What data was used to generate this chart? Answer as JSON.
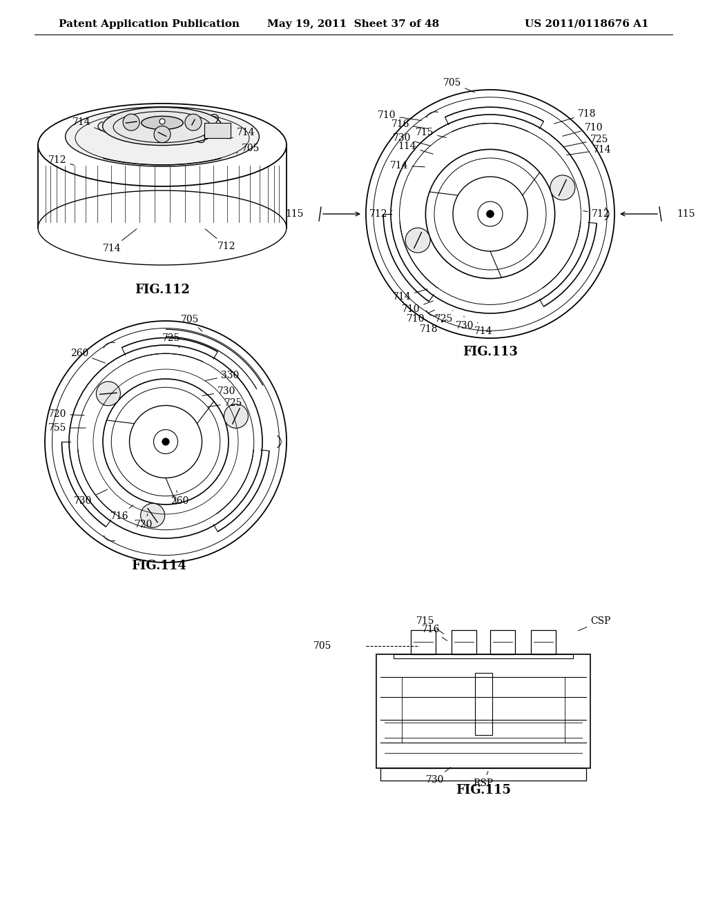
{
  "background_color": "#ffffff",
  "header_left": "Patent Application Publication",
  "header_mid": "May 19, 2011  Sheet 37 of 48",
  "header_right": "US 2011/0118676 A1",
  "header_fontsize": 11,
  "fig112_label": "FIG.112",
  "fig113_label": "FIG.113",
  "fig114_label": "FIG.114",
  "fig115_label": "FIG.115",
  "label_fontsize": 10,
  "figname_fontsize": 13,
  "text_color": "#000000",
  "line_color": "#000000"
}
